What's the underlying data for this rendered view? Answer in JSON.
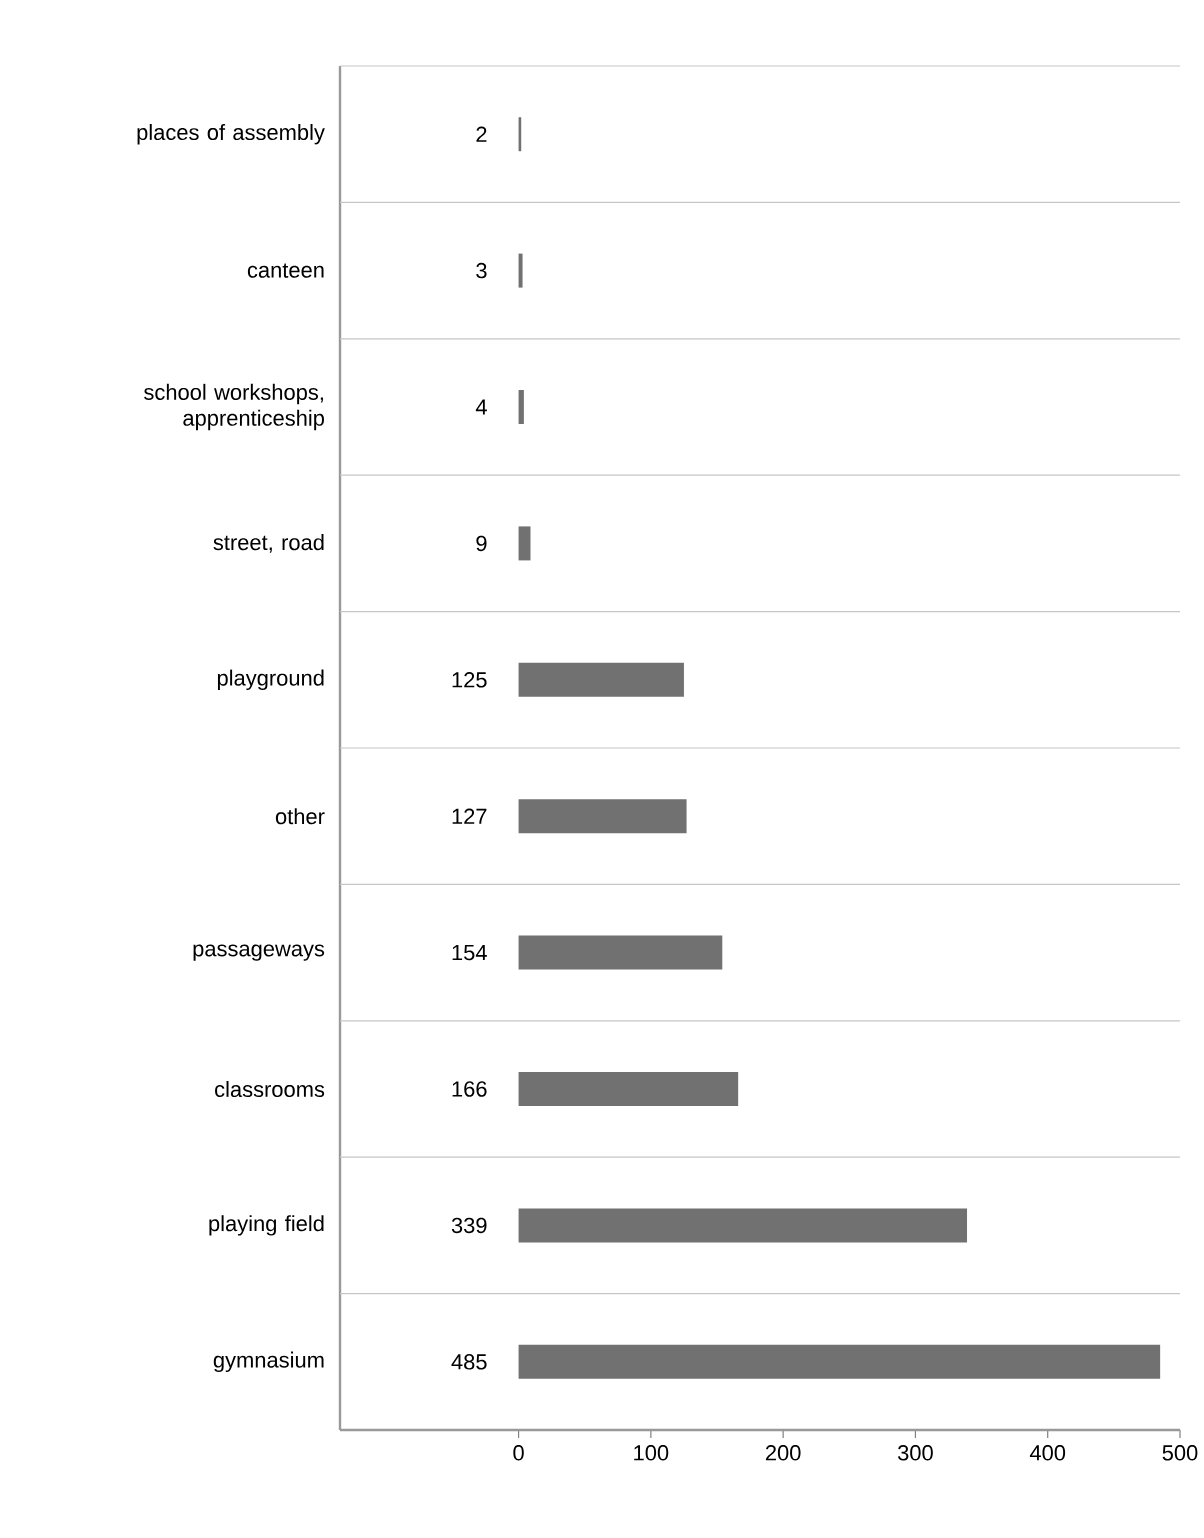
{
  "chart_data": {
    "type": "bar",
    "orientation": "horizontal",
    "categories": [
      "places of assembly",
      "canteen",
      "school workshops, apprenticeship",
      "street, road",
      "playground",
      "other",
      "passageways",
      "classrooms",
      "playing field",
      "gymnasium"
    ],
    "values": [
      2,
      3,
      4,
      9,
      125,
      127,
      154,
      166,
      339,
      485
    ],
    "color": "#717171",
    "xlim": [
      -135,
      500
    ],
    "xticks": [
      0,
      100,
      200,
      300,
      400,
      500
    ],
    "data_labels": true,
    "grid": "y"
  }
}
